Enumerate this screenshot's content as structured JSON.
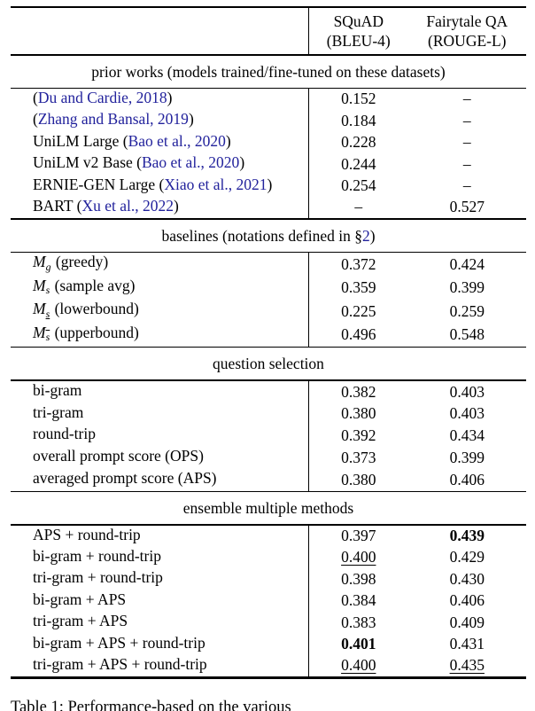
{
  "colors": {
    "background": "#ffffff",
    "text": "#000000",
    "citation_link": "#22229c"
  },
  "table": {
    "header": {
      "col1_line1": "SQuAD",
      "col1_line2": "(BLEU-4)",
      "col2_line1": "Fairytale QA",
      "col2_line2": "(ROUGE-L)"
    },
    "sections": [
      {
        "title_parts": [
          {
            "t": "prior works (models trained/fine-tuned on these datasets)"
          }
        ],
        "rows": [
          {
            "label_parts": [
              {
                "t": "("
              },
              {
                "t": "Du and Cardie, 2018",
                "cite": true
              },
              {
                "t": ")"
              }
            ],
            "squad": {
              "t": "0.152"
            },
            "fairytale": {
              "t": "–"
            }
          },
          {
            "label_parts": [
              {
                "t": "("
              },
              {
                "t": "Zhang and Bansal, 2019",
                "cite": true
              },
              {
                "t": ")"
              }
            ],
            "squad": {
              "t": "0.184"
            },
            "fairytale": {
              "t": "–"
            }
          },
          {
            "label_parts": [
              {
                "t": "UniLM Large ("
              },
              {
                "t": "Bao et al., 2020",
                "cite": true
              },
              {
                "t": ")"
              }
            ],
            "squad": {
              "t": "0.228"
            },
            "fairytale": {
              "t": "–"
            }
          },
          {
            "label_parts": [
              {
                "t": "UniLM v2 Base ("
              },
              {
                "t": "Bao et al., 2020",
                "cite": true
              },
              {
                "t": ")"
              }
            ],
            "squad": {
              "t": "0.244"
            },
            "fairytale": {
              "t": "–"
            }
          },
          {
            "label_parts": [
              {
                "t": "ERNIE-GEN Large ("
              },
              {
                "t": "Xiao et al., 2021",
                "cite": true
              },
              {
                "t": ")"
              }
            ],
            "squad": {
              "t": "0.254"
            },
            "fairytale": {
              "t": "–"
            }
          },
          {
            "label_parts": [
              {
                "t": "BART ("
              },
              {
                "t": "Xu et al., 2022",
                "cite": true
              },
              {
                "t": ")"
              }
            ],
            "squad": {
              "t": "–"
            },
            "fairytale": {
              "t": "0.527"
            }
          }
        ]
      },
      {
        "title_parts": [
          {
            "t": "baselines (notations defined in §"
          },
          {
            "t": "2",
            "cite": true
          },
          {
            "t": ")"
          }
        ],
        "rows": [
          {
            "label_parts": [
              {
                "t": "M",
                "math": true
              },
              {
                "t": "g",
                "sub": true
              },
              {
                "t": " (greedy)"
              }
            ],
            "squad": {
              "t": "0.372"
            },
            "fairytale": {
              "t": "0.424"
            }
          },
          {
            "label_parts": [
              {
                "t": "M",
                "math": true
              },
              {
                "t": "s",
                "sub": true
              },
              {
                "t": " (sample avg)"
              }
            ],
            "squad": {
              "t": "0.359"
            },
            "fairytale": {
              "t": "0.399"
            }
          },
          {
            "label_parts": [
              {
                "t": "M",
                "math": true
              },
              {
                "t": "s",
                "sub": true,
                "underline": true
              },
              {
                "t": " (lowerbound)"
              }
            ],
            "squad": {
              "t": "0.225"
            },
            "fairytale": {
              "t": "0.259"
            }
          },
          {
            "label_parts": [
              {
                "t": "M",
                "math": true
              },
              {
                "t": "s",
                "sub": true,
                "over": true
              },
              {
                "t": " (upperbound)"
              }
            ],
            "squad": {
              "t": "0.496"
            },
            "fairytale": {
              "t": "0.548"
            }
          }
        ]
      },
      {
        "title_parts": [
          {
            "t": "question selection"
          }
        ],
        "rows": [
          {
            "label_parts": [
              {
                "t": "bi-gram"
              }
            ],
            "squad": {
              "t": "0.382"
            },
            "fairytale": {
              "t": "0.403"
            }
          },
          {
            "label_parts": [
              {
                "t": "tri-gram"
              }
            ],
            "squad": {
              "t": "0.380"
            },
            "fairytale": {
              "t": "0.403"
            }
          },
          {
            "label_parts": [
              {
                "t": "round-trip"
              }
            ],
            "squad": {
              "t": "0.392"
            },
            "fairytale": {
              "t": "0.434"
            }
          },
          {
            "label_parts": [
              {
                "t": "overall prompt score (OPS)"
              }
            ],
            "squad": {
              "t": "0.373"
            },
            "fairytale": {
              "t": "0.399"
            }
          },
          {
            "label_parts": [
              {
                "t": "averaged prompt score (APS)"
              }
            ],
            "squad": {
              "t": "0.380"
            },
            "fairytale": {
              "t": "0.406"
            }
          }
        ]
      },
      {
        "title_parts": [
          {
            "t": "ensemble multiple methods"
          }
        ],
        "rows": [
          {
            "label_parts": [
              {
                "t": "APS + round-trip"
              }
            ],
            "squad": {
              "t": "0.397"
            },
            "fairytale": {
              "t": "0.439",
              "bold": true
            }
          },
          {
            "label_parts": [
              {
                "t": "bi-gram + round-trip"
              }
            ],
            "squad": {
              "t": "0.400",
              "underline": true
            },
            "fairytale": {
              "t": "0.429"
            }
          },
          {
            "label_parts": [
              {
                "t": "tri-gram + round-trip"
              }
            ],
            "squad": {
              "t": "0.398"
            },
            "fairytale": {
              "t": "0.430"
            }
          },
          {
            "label_parts": [
              {
                "t": "bi-gram + APS"
              }
            ],
            "squad": {
              "t": "0.384"
            },
            "fairytale": {
              "t": "0.406"
            }
          },
          {
            "label_parts": [
              {
                "t": "tri-gram + APS"
              }
            ],
            "squad": {
              "t": "0.383"
            },
            "fairytale": {
              "t": "0.409"
            }
          },
          {
            "label_parts": [
              {
                "t": "bi-gram + APS + round-trip"
              }
            ],
            "squad": {
              "t": "0.401",
              "bold": true
            },
            "fairytale": {
              "t": "0.431"
            }
          },
          {
            "label_parts": [
              {
                "t": "tri-gram + APS + round-trip"
              }
            ],
            "squad": {
              "t": "0.400",
              "underline": true
            },
            "fairytale": {
              "t": "0.435",
              "underline": true
            }
          }
        ]
      }
    ]
  },
  "caption": {
    "text": "Table 1: Performance-based on the various"
  }
}
